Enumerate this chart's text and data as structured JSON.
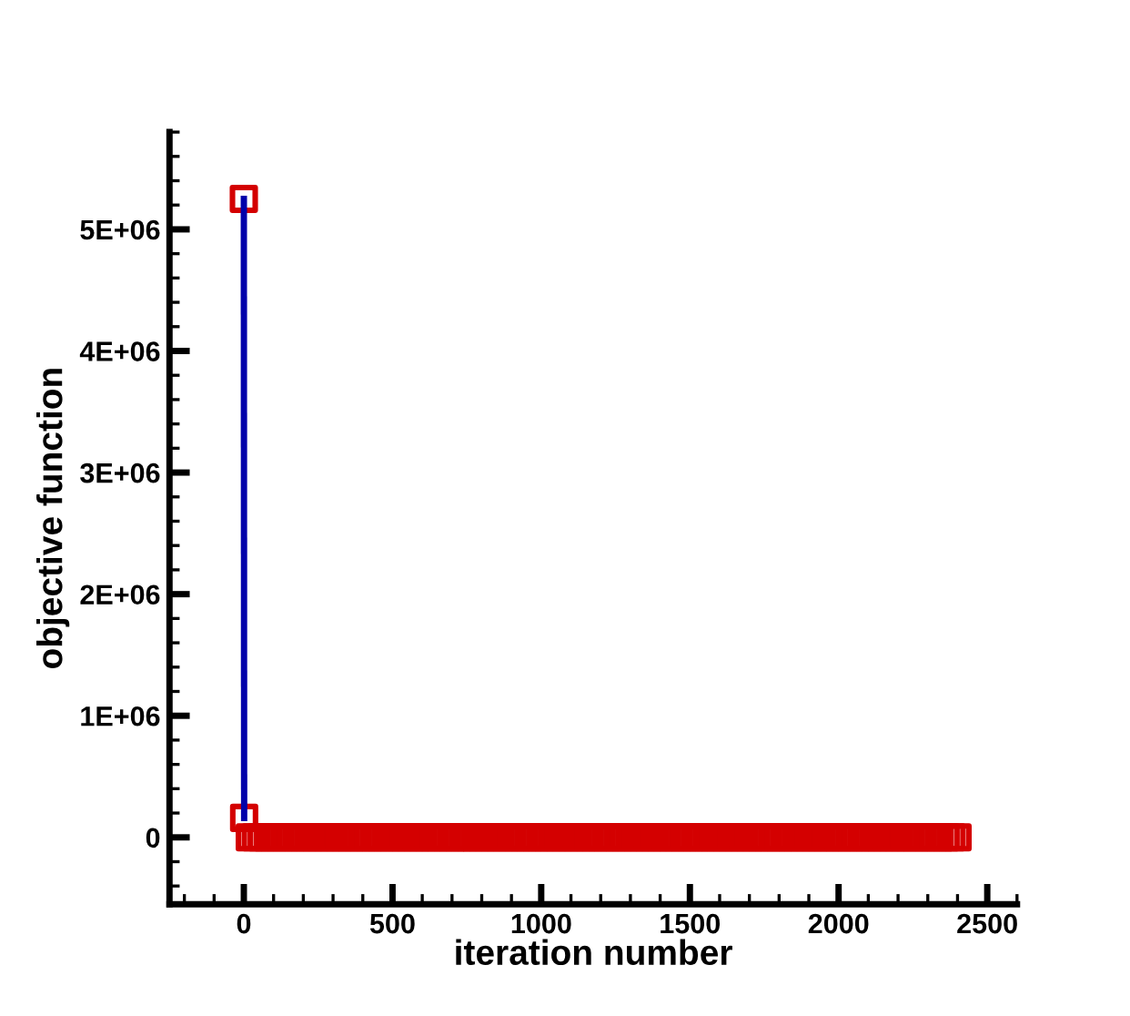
{
  "chart_data": {
    "type": "line",
    "xlabel": "iteration number",
    "ylabel": "objective function",
    "series": [
      {
        "type": "scatter",
        "color": "#d40000",
        "marker": "square",
        "x": [
          0,
          1,
          20,
          40,
          60,
          80,
          100,
          120,
          140,
          160,
          180,
          200,
          220,
          240,
          260,
          280,
          300,
          320,
          340,
          360,
          380,
          400,
          420,
          440,
          460,
          480,
          500,
          520,
          540,
          560,
          580,
          600,
          620,
          640,
          660,
          680,
          700,
          720,
          740,
          760,
          780,
          800,
          820,
          840,
          860,
          880,
          900,
          920,
          940,
          960,
          980,
          1000,
          1020,
          1040,
          1060,
          1080,
          1100,
          1120,
          1140,
          1160,
          1180,
          1200,
          1220,
          1240,
          1260,
          1280,
          1300,
          1320,
          1340,
          1360,
          1380,
          1400,
          1420,
          1440,
          1460,
          1480,
          1500,
          1520,
          1540,
          1560,
          1580,
          1600,
          1620,
          1640,
          1660,
          1680,
          1700,
          1720,
          1740,
          1760,
          1780,
          1800,
          1820,
          1840,
          1860,
          1880,
          1900,
          1920,
          1940,
          1960,
          1980,
          2000,
          2020,
          2040,
          2060,
          2080,
          2100,
          2120,
          2140,
          2160,
          2180,
          2200,
          2220,
          2240,
          2260,
          2280,
          2300,
          2320,
          2340,
          2360,
          2380,
          2400
        ],
        "values": [
          5250000,
          160000,
          0,
          0,
          0,
          0,
          0,
          0,
          0,
          0,
          0,
          0,
          0,
          0,
          0,
          0,
          0,
          0,
          0,
          0,
          0,
          0,
          0,
          0,
          0,
          0,
          0,
          0,
          0,
          0,
          0,
          0,
          0,
          0,
          0,
          0,
          0,
          0,
          0,
          0,
          0,
          0,
          0,
          0,
          0,
          0,
          0,
          0,
          0,
          0,
          0,
          0,
          0,
          0,
          0,
          0,
          0,
          0,
          0,
          0,
          0,
          0,
          0,
          0,
          0,
          0,
          0,
          0,
          0,
          0,
          0,
          0,
          0,
          0,
          0,
          0,
          0,
          0,
          0,
          0,
          0,
          0,
          0,
          0,
          0,
          0,
          0,
          0,
          0,
          0,
          0,
          0,
          0,
          0,
          0,
          0,
          0,
          0,
          0,
          0,
          0,
          0,
          0,
          0,
          0,
          0,
          0,
          0,
          0,
          0,
          0,
          0,
          0,
          0,
          0,
          0,
          0,
          0,
          0,
          0,
          0,
          0
        ]
      },
      {
        "color": "#0000aa",
        "marker": "none",
        "x": [
          0,
          1
        ],
        "values": [
          5250000,
          160000
        ]
      }
    ],
    "line_style": "solid",
    "grid": false,
    "xlim": [
      -250,
      2600
    ],
    "ylim": [
      -550000,
      5800000
    ],
    "xticks": [
      0,
      500,
      1000,
      1500,
      2000,
      2500
    ],
    "yticks": [
      0,
      {
        "value": 1000000,
        "label": "1E+06"
      },
      {
        "value": 2000000,
        "label": "2E+06"
      },
      {
        "value": 3000000,
        "label": "3E+06"
      },
      {
        "value": 4000000,
        "label": "4E+06"
      },
      {
        "value": 5000000,
        "label": "5E+06"
      }
    ]
  }
}
